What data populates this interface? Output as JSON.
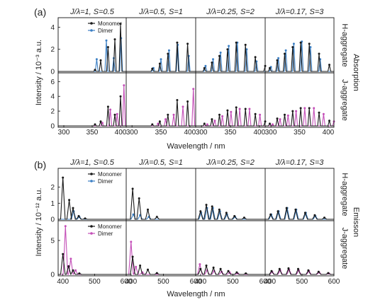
{
  "colors": {
    "monomer": "#1a1a1a",
    "dimer_h": "#3b7fc4",
    "dimer_j": "#c44fb8",
    "frame": "#111111"
  },
  "chart_data": [
    {
      "panel": "(a)",
      "type": "line",
      "kind": "absorption",
      "column_titles": [
        "J/λ=1, S=0.5",
        "J/λ=0.5, S=1",
        "J/λ=0.25, S=2",
        "J/λ=0.17, S=3"
      ],
      "right_label": "Absorption",
      "ylabel": "Intensity / 10⁻³ a.u.",
      "xlabel": "Wavelength / nm",
      "xlim": [
        290,
        410
      ],
      "x_ticks": [
        300,
        350,
        400
      ],
      "rows": [
        {
          "label": "H-aggregate",
          "ylim": [
            0,
            4.6
          ],
          "y_ticks": [
            "0",
            "2",
            "4"
          ],
          "legend": [
            "Monomer",
            "Dimer"
          ],
          "series_colors": [
            "monomer",
            "dimer_h"
          ],
          "columns": [
            {
              "monomer": [
                [
                  355,
                  0.15
                ],
                [
                  365,
                  1.0
                ],
                [
                  378,
                  2.2
                ],
                [
                  390,
                  2.9
                ],
                [
                  400,
                  4.3
                ]
              ],
              "dimer": [
                [
                  358,
                  1.1
                ],
                [
                  375,
                  2.8
                ],
                [
                  388,
                  1.2
                ],
                [
                  401,
                  3.0
                ]
              ]
            },
            {
              "monomer": [
                [
                  335,
                  0.25
                ],
                [
                  348,
                  0.7
                ],
                [
                  362,
                  1.6
                ],
                [
                  378,
                  2.6
                ],
                [
                  396,
                  2.5
                ]
              ],
              "dimer": [
                [
                  337,
                  0.3
                ],
                [
                  350,
                  1.1
                ],
                [
                  364,
                  1.9
                ],
                [
                  379,
                  2.4
                ],
                [
                  398,
                  1.4
                ]
              ]
            },
            {
              "monomer": [
                [
                  305,
                  0.3
                ],
                [
                  318,
                  0.8
                ],
                [
                  331,
                  1.4
                ],
                [
                  345,
                  2.0
                ],
                [
                  360,
                  2.6
                ],
                [
                  376,
                  2.4
                ],
                [
                  393,
                  1.3
                ],
                [
                  410,
                  0.5
                ]
              ],
              "dimer": [
                [
                  307,
                  0.5
                ],
                [
                  320,
                  1.1
                ],
                [
                  333,
                  1.7
                ],
                [
                  347,
                  2.3
                ],
                [
                  362,
                  2.6
                ],
                [
                  378,
                  2.0
                ],
                [
                  395,
                  0.9
                ]
              ]
            },
            {
              "monomer": [
                [
                  298,
                  0.3
                ],
                [
                  311,
                  1.0
                ],
                [
                  324,
                  1.6
                ],
                [
                  338,
                  2.2
                ],
                [
                  352,
                  2.6
                ],
                [
                  367,
                  2.5
                ],
                [
                  384,
                  1.6
                ],
                [
                  402,
                  0.6
                ]
              ],
              "dimer": [
                [
                  300,
                  0.4
                ],
                [
                  313,
                  1.2
                ],
                [
                  326,
                  1.9
                ],
                [
                  340,
                  2.5
                ],
                [
                  354,
                  2.7
                ],
                [
                  369,
                  2.2
                ],
                [
                  386,
                  1.1
                ]
              ]
            }
          ]
        },
        {
          "label": "J-aggregate",
          "ylim": [
            0,
            6.8
          ],
          "y_ticks": [
            "0",
            "2",
            "4",
            "6"
          ],
          "legend": [],
          "series_colors": [
            "monomer",
            "dimer_j"
          ],
          "columns": [
            {
              "monomer": [
                [
                  355,
                  0.2
                ],
                [
                  365,
                  0.6
                ],
                [
                  378,
                  2.6
                ],
                [
                  390,
                  1.5
                ],
                [
                  400,
                  4.0
                ]
              ],
              "dimer": [
                [
                  368,
                  0.4
                ],
                [
                  382,
                  2.2
                ],
                [
                  394,
                  1.6
                ],
                [
                  406,
                  5.5
                ]
              ]
            },
            {
              "monomer": [
                [
                  335,
                  0.2
                ],
                [
                  348,
                  0.6
                ],
                [
                  362,
                  1.5
                ],
                [
                  378,
                  3.5
                ],
                [
                  396,
                  3.3
                ]
              ],
              "dimer": [
                [
                  345,
                  0.3
                ],
                [
                  358,
                  0.9
                ],
                [
                  372,
                  1.5
                ],
                [
                  388,
                  2.6
                ],
                [
                  406,
                  5.0
                ]
              ]
            },
            {
              "monomer": [
                [
                  305,
                  0.3
                ],
                [
                  318,
                  0.9
                ],
                [
                  331,
                  1.5
                ],
                [
                  345,
                  2.1
                ],
                [
                  360,
                  2.5
                ],
                [
                  376,
                  2.3
                ],
                [
                  393,
                  1.6
                ],
                [
                  410,
                  0.6
                ]
              ],
              "dimer": [
                [
                  310,
                  0.2
                ],
                [
                  323,
                  0.7
                ],
                [
                  336,
                  1.3
                ],
                [
                  351,
                  1.9
                ],
                [
                  366,
                  2.3
                ],
                [
                  383,
                  2.3
                ],
                [
                  401,
                  1.5
                ]
              ]
            },
            {
              "monomer": [
                [
                  298,
                  0.3
                ],
                [
                  311,
                  1.0
                ],
                [
                  324,
                  1.5
                ],
                [
                  338,
                  2.0
                ],
                [
                  352,
                  2.4
                ],
                [
                  367,
                  2.4
                ],
                [
                  384,
                  1.8
                ],
                [
                  402,
                  0.7
                ]
              ],
              "dimer": [
                [
                  303,
                  0.2
                ],
                [
                  316,
                  0.9
                ],
                [
                  330,
                  1.4
                ],
                [
                  344,
                  2.0
                ],
                [
                  359,
                  2.4
                ],
                [
                  375,
                  2.4
                ],
                [
                  392,
                  1.6
                ],
                [
                  410,
                  0.6
                ]
              ]
            }
          ]
        }
      ]
    },
    {
      "panel": "(b)",
      "type": "line",
      "kind": "emission",
      "column_titles": [
        "J/λ=1, S=0.5",
        "J/λ=0.5, S=1",
        "J/λ=0.25, S=2",
        "J/λ=0.17, S=3"
      ],
      "right_label": "Emisson",
      "ylabel": "Intensity / 10⁻¹² a.u.",
      "xlabel": "Wavelength / nm",
      "xlim": [
        385,
        600
      ],
      "x_ticks": [
        400,
        500,
        600
      ],
      "rows": [
        {
          "label": "H-aggregate",
          "ylim": [
            0,
            3.0
          ],
          "y_ticks": [
            "0",
            "1",
            "2"
          ],
          "legend": [
            "Monomer",
            "Dimer"
          ],
          "series_colors": [
            "monomer",
            "dimer_h"
          ],
          "columns": [
            {
              "monomer": [
                [
                  400,
                  2.6
                ],
                [
                  420,
                  1.2
                ],
                [
                  432,
                  0.7
                ],
                [
                  450,
                  0.2
                ],
                [
                  470,
                  0.05
                ]
              ],
              "dimer": [
                [
                  434,
                  0.5
                ],
                [
                  452,
                  0.15
                ]
              ]
            },
            {
              "monomer": [
                [
                  405,
                  1.9
                ],
                [
                  425,
                  1.3
                ],
                [
                  452,
                  0.6
                ],
                [
                  480,
                  0.15
                ]
              ],
              "dimer": [
                [
                  407,
                  0.3
                ],
                [
                  428,
                  0.25
                ],
                [
                  455,
                  0.15
                ]
              ]
            },
            {
              "monomer": [
                [
                  400,
                  0.5
                ],
                [
                  418,
                  0.9
                ],
                [
                  436,
                  0.8
                ],
                [
                  458,
                  0.6
                ],
                [
                  480,
                  0.4
                ],
                [
                  505,
                  0.2
                ],
                [
                  535,
                  0.1
                ]
              ],
              "dimer": [
                [
                  402,
                  0.4
                ],
                [
                  420,
                  0.7
                ],
                [
                  438,
                  0.7
                ],
                [
                  460,
                  0.5
                ],
                [
                  482,
                  0.3
                ],
                [
                  507,
                  0.15
                ]
              ]
            },
            {
              "monomer": [
                [
                  402,
                  0.3
                ],
                [
                  425,
                  0.5
                ],
                [
                  452,
                  0.7
                ],
                [
                  480,
                  0.6
                ],
                [
                  510,
                  0.4
                ],
                [
                  540,
                  0.25
                ],
                [
                  570,
                  0.1
                ]
              ],
              "dimer": [
                [
                  404,
                  0.3
                ],
                [
                  427,
                  0.5
                ],
                [
                  454,
                  0.7
                ],
                [
                  482,
                  0.6
                ],
                [
                  512,
                  0.4
                ],
                [
                  542,
                  0.2
                ]
              ]
            }
          ]
        },
        {
          "label": "J-aggregate",
          "ylim": [
            0,
            7.5
          ],
          "y_ticks": [
            "0",
            "5"
          ],
          "legend": [
            "Monomer",
            "Dimer"
          ],
          "series_colors": [
            "monomer",
            "dimer_j"
          ],
          "columns": [
            {
              "monomer": [
                [
                  400,
                  3.0
                ],
                [
                  418,
                  1.2
                ],
                [
                  432,
                  0.6
                ],
                [
                  452,
                  0.15
                ]
              ],
              "dimer": [
                [
                  408,
                  7.1
                ],
                [
                  425,
                  2.3
                ],
                [
                  440,
                  0.6
                ]
              ]
            },
            {
              "monomer": [
                [
                  405,
                  2.6
                ],
                [
                  428,
                  1.3
                ],
                [
                  452,
                  0.7
                ],
                [
                  480,
                  0.2
                ]
              ],
              "dimer": [
                [
                  400,
                  4.8
                ],
                [
                  415,
                  1.1
                ],
                [
                  435,
                  0.3
                ]
              ]
            },
            {
              "monomer": [
                [
                  400,
                  0.8
                ],
                [
                  418,
                  1.3
                ],
                [
                  440,
                  1.0
                ],
                [
                  462,
                  0.8
                ],
                [
                  486,
                  0.5
                ],
                [
                  512,
                  0.3
                ],
                [
                  540,
                  0.15
                ]
              ],
              "dimer": [
                [
                  398,
                  1.5
                ],
                [
                  420,
                  0.6
                ],
                [
                  442,
                  0.5
                ],
                [
                  465,
                  0.4
                ],
                [
                  490,
                  0.3
                ],
                [
                  515,
                  0.15
                ]
              ]
            },
            {
              "monomer": [
                [
                  405,
                  0.5
                ],
                [
                  430,
                  0.8
                ],
                [
                  458,
                  0.9
                ],
                [
                  488,
                  0.8
                ],
                [
                  520,
                  0.6
                ],
                [
                  552,
                  0.4
                ],
                [
                  582,
                  0.2
                ]
              ],
              "dimer": [
                [
                  407,
                  0.4
                ],
                [
                  432,
                  0.6
                ],
                [
                  460,
                  0.7
                ],
                [
                  490,
                  0.6
                ],
                [
                  522,
                  0.5
                ],
                [
                  554,
                  0.3
                ],
                [
                  584,
                  0.15
                ]
              ]
            }
          ]
        }
      ]
    }
  ]
}
